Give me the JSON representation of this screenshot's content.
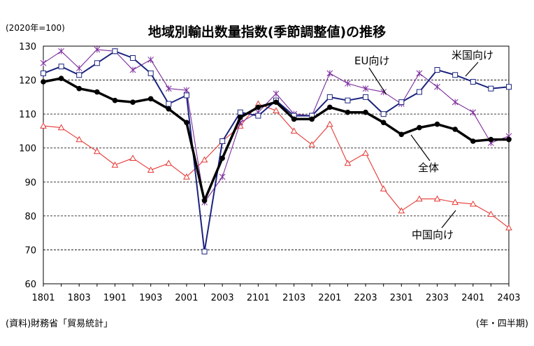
{
  "chart_data": {
    "type": "line",
    "title": "地域別輸出数量指数(季節調整値)の推移",
    "unit_note": "(2020年=100)",
    "source": "(資料)財務省「貿易統計」",
    "x_unit_note": "(年・四半期)",
    "xlabel": "",
    "ylabel": "",
    "ylim": [
      60,
      130
    ],
    "y_ticks": [
      "60",
      "70",
      "80",
      "90",
      "100",
      "110",
      "120",
      "130"
    ],
    "x": [
      "1801",
      "1802",
      "1803",
      "1804",
      "1901",
      "1902",
      "1903",
      "1904",
      "2001",
      "2002",
      "2003",
      "2004",
      "2101",
      "2102",
      "2103",
      "2104",
      "2201",
      "2202",
      "2203",
      "2204",
      "2301",
      "2302",
      "2303",
      "2304",
      "2401",
      "2402",
      "2403"
    ],
    "x_tick_labels": [
      "1801",
      "1803",
      "1901",
      "1903",
      "2001",
      "2003",
      "2101",
      "2103",
      "2201",
      "2203",
      "2301",
      "2303",
      "2401",
      "2403"
    ],
    "grid": "horizontal dashed",
    "series": [
      {
        "name": "米国向け",
        "color": "#7b2c9c",
        "marker": "asterisk",
        "values": [
          125,
          128.5,
          123.5,
          129,
          128.5,
          123,
          126,
          117.5,
          117,
          84,
          91.5,
          107.5,
          110.5,
          116,
          110,
          109.5,
          122,
          119,
          117.5,
          116.5,
          113,
          122,
          118,
          113.5,
          110.5,
          101.5,
          103.5
        ]
      },
      {
        "name": "EU向け",
        "color": "#1a237e",
        "marker": "square",
        "values": [
          122,
          124,
          121.5,
          125,
          128.5,
          126.5,
          122,
          113,
          115.5,
          69.5,
          102,
          110.5,
          109.5,
          114,
          109.5,
          109.5,
          115,
          114,
          115,
          110,
          113.5,
          116.5,
          123,
          121.5,
          119.5,
          117.5,
          118
        ]
      },
      {
        "name": "全体",
        "color": "#000000",
        "marker": "dot",
        "values": [
          119.5,
          120.5,
          117.5,
          116.5,
          114,
          113.5,
          114.5,
          111.5,
          107.5,
          84.5,
          97,
          109,
          112,
          113.5,
          108.5,
          108.5,
          112,
          110.5,
          110.5,
          107.5,
          104,
          106,
          107,
          105.5,
          102,
          102.5,
          102.5
        ]
      },
      {
        "name": "中国向け",
        "color": "#e53935",
        "marker": "triangle",
        "values": [
          106.5,
          106,
          102.5,
          99,
          95,
          97,
          93.5,
          95.5,
          91.5,
          96.5,
          102,
          106.5,
          113,
          111,
          105,
          101,
          107,
          95.5,
          98.5,
          88,
          81.5,
          85,
          85,
          84,
          83.5,
          80.5,
          76.5
        ]
      }
    ]
  }
}
